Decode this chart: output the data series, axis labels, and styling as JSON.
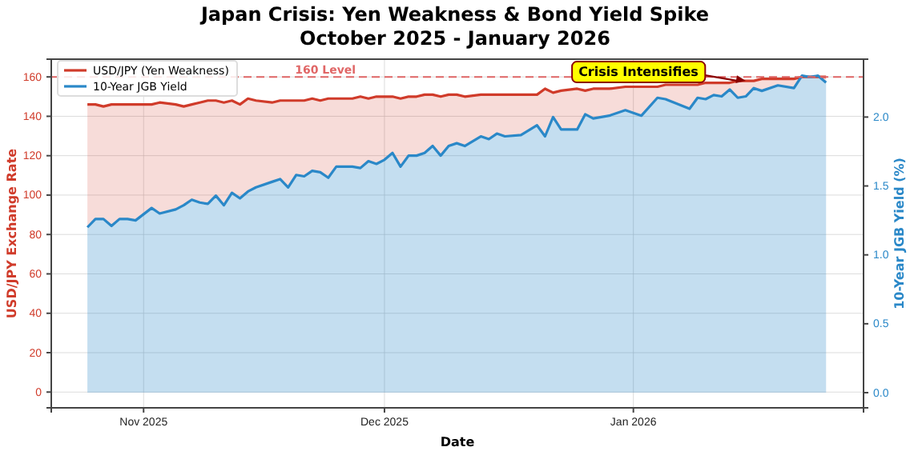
{
  "chart_data": {
    "type": "area",
    "title": "Japan Crisis: Yen Weakness & Bond Yield Spike",
    "subtitle": "October 2025 - January 2026",
    "xlabel": "Date",
    "ylabel": "USD/JPY Exchange Rate",
    "y2label": "10-Year JGB Yield (%)",
    "x": [
      "2025-10-25",
      "2025-10-26",
      "2025-10-27",
      "2025-10-28",
      "2025-10-29",
      "2025-10-30",
      "2025-10-31",
      "2025-11-02",
      "2025-11-03",
      "2025-11-05",
      "2025-11-06",
      "2025-11-07",
      "2025-11-08",
      "2025-11-09",
      "2025-11-10",
      "2025-11-11",
      "2025-11-12",
      "2025-11-13",
      "2025-11-14",
      "2025-11-15",
      "2025-11-17",
      "2025-11-18",
      "2025-11-19",
      "2025-11-20",
      "2025-11-21",
      "2025-11-22",
      "2025-11-23",
      "2025-11-24",
      "2025-11-25",
      "2025-11-27",
      "2025-11-28",
      "2025-11-29",
      "2025-11-30",
      "2025-12-01",
      "2025-12-02",
      "2025-12-03",
      "2025-12-04",
      "2025-12-05",
      "2025-12-06",
      "2025-12-07",
      "2025-12-08",
      "2025-12-09",
      "2025-12-10",
      "2025-12-11",
      "2025-12-13",
      "2025-12-14",
      "2025-12-15",
      "2025-12-16",
      "2025-12-18",
      "2025-12-20",
      "2025-12-21",
      "2025-12-22",
      "2025-12-23",
      "2025-12-25",
      "2025-12-26",
      "2025-12-27",
      "2025-12-29",
      "2025-12-31",
      "2026-01-02",
      "2026-01-04",
      "2026-01-05",
      "2026-01-08",
      "2026-01-09",
      "2026-01-10",
      "2026-01-11",
      "2026-01-12",
      "2026-01-13",
      "2026-01-14",
      "2026-01-15",
      "2026-01-16",
      "2026-01-17",
      "2026-01-19",
      "2026-01-21",
      "2026-01-22",
      "2026-01-23",
      "2026-01-24",
      "2026-01-25"
    ],
    "series": [
      {
        "name": "USD/JPY (Yen Weakness)",
        "color": "#d03b2a",
        "values": [
          146,
          146,
          145,
          146,
          146,
          146,
          146,
          146,
          147,
          146,
          145,
          146,
          147,
          148,
          148,
          147,
          148,
          146,
          149,
          148,
          147,
          148,
          148,
          148,
          148,
          149,
          148,
          149,
          149,
          149,
          150,
          149,
          150,
          150,
          150,
          149,
          150,
          150,
          151,
          151,
          150,
          151,
          151,
          150,
          151,
          151,
          151,
          151,
          151,
          151,
          154,
          152,
          153,
          154,
          153,
          154,
          154,
          155,
          155,
          155,
          156,
          156,
          156,
          157,
          157,
          157,
          157,
          158,
          158,
          158,
          159,
          159,
          159,
          160,
          160,
          160,
          160
        ]
      },
      {
        "name": "10-Year JGB Yield",
        "color": "#2a88c8",
        "axis": "y2",
        "values": [
          1.2,
          1.26,
          1.26,
          1.21,
          1.26,
          1.26,
          1.25,
          1.34,
          1.3,
          1.33,
          1.36,
          1.4,
          1.38,
          1.37,
          1.43,
          1.36,
          1.45,
          1.41,
          1.46,
          1.49,
          1.53,
          1.55,
          1.49,
          1.58,
          1.57,
          1.61,
          1.6,
          1.56,
          1.64,
          1.64,
          1.63,
          1.68,
          1.66,
          1.69,
          1.74,
          1.64,
          1.72,
          1.72,
          1.74,
          1.79,
          1.72,
          1.79,
          1.81,
          1.79,
          1.86,
          1.84,
          1.88,
          1.86,
          1.87,
          1.94,
          1.86,
          2.0,
          1.91,
          1.91,
          2.02,
          1.99,
          2.01,
          2.05,
          2.01,
          2.14,
          2.13,
          2.06,
          2.14,
          2.13,
          2.16,
          2.15,
          2.2,
          2.14,
          2.15,
          2.21,
          2.19,
          2.23,
          2.21,
          2.3,
          2.29,
          2.3,
          2.25
        ]
      }
    ],
    "xlim": [
      "2025-10-20T12:00",
      "2026-01-29T16:00"
    ],
    "xticks": [
      {
        "value": "2025-11-01",
        "label": "Nov 2025"
      },
      {
        "value": "2025-12-01",
        "label": "Dec 2025"
      },
      {
        "value": "2026-01-01",
        "label": "Jan 2026"
      }
    ],
    "ylim": [
      -8,
      169
    ],
    "yticks": [
      0,
      20,
      40,
      60,
      80,
      100,
      120,
      140,
      160
    ],
    "y2lim": [
      -0.11,
      2.42
    ],
    "y2ticks": [
      {
        "value": 0,
        "label": "0.0"
      },
      {
        "value": 0.5,
        "label": "0.5"
      },
      {
        "value": 1,
        "label": "1.0"
      },
      {
        "value": 1.5,
        "label": "1.5"
      },
      {
        "value": 2,
        "label": "2.0"
      }
    ],
    "ref_lines": [
      {
        "axis": "y",
        "value": 160,
        "label": "160 Level",
        "color": "#e06666",
        "line_style": "dashed"
      }
    ],
    "annotations": [
      {
        "text": "Crisis Intensifies",
        "x": "2026-01-15",
        "y": 158
      }
    ],
    "grid": true,
    "legend": "top left",
    "marker": "none",
    "line_style": "solid"
  }
}
